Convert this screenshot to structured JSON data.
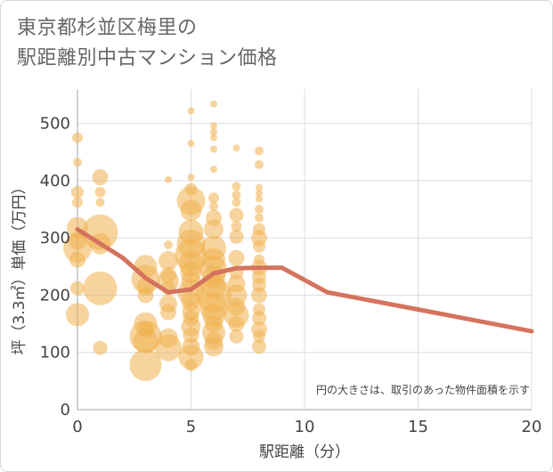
{
  "title": {
    "line1": "東京都杉並区梅里の",
    "line2": "駅距離別中古マンション価格"
  },
  "chart_data": {
    "type": "scatter",
    "xlabel": "駅距離（分）",
    "ylabel": "坪（3.3㎡）単価（万円）",
    "xlim": [
      0,
      20
    ],
    "ylim": [
      0,
      560
    ],
    "xticks": [
      0,
      5,
      10,
      15,
      20
    ],
    "yticks": [
      0,
      100,
      200,
      300,
      400,
      500
    ],
    "grid": true,
    "note": "円の大きさは、取引のあった物件面積を示す",
    "colors": {
      "bubble": "#f0b04f",
      "line": "#d4735e",
      "grid": "#d7dde3"
    },
    "trend_line": {
      "x": [
        0,
        1,
        2,
        3,
        4,
        5,
        6,
        7,
        8,
        9,
        11,
        15,
        20
      ],
      "y": [
        315,
        290,
        265,
        230,
        205,
        210,
        238,
        247,
        248,
        248,
        205,
        175,
        137
      ]
    },
    "bubbles": [
      {
        "x": 0,
        "y": 475,
        "r": 6
      },
      {
        "x": 0,
        "y": 432,
        "r": 5
      },
      {
        "x": 0,
        "y": 380,
        "r": 7
      },
      {
        "x": 0,
        "y": 362,
        "r": 6
      },
      {
        "x": 0,
        "y": 318,
        "r": 12
      },
      {
        "x": 0,
        "y": 295,
        "r": 10
      },
      {
        "x": 0,
        "y": 282,
        "r": 16
      },
      {
        "x": 0,
        "y": 262,
        "r": 9
      },
      {
        "x": 0,
        "y": 212,
        "r": 8
      },
      {
        "x": 0,
        "y": 166,
        "r": 13
      },
      {
        "x": 1,
        "y": 406,
        "r": 9
      },
      {
        "x": 1,
        "y": 380,
        "r": 6
      },
      {
        "x": 1,
        "y": 362,
        "r": 5
      },
      {
        "x": 1,
        "y": 310,
        "r": 20
      },
      {
        "x": 1,
        "y": 290,
        "r": 12
      },
      {
        "x": 1,
        "y": 212,
        "r": 19
      },
      {
        "x": 1,
        "y": 108,
        "r": 8
      },
      {
        "x": 3,
        "y": 250,
        "r": 13
      },
      {
        "x": 3,
        "y": 228,
        "r": 16
      },
      {
        "x": 3,
        "y": 215,
        "r": 10
      },
      {
        "x": 3,
        "y": 200,
        "r": 9
      },
      {
        "x": 3,
        "y": 150,
        "r": 13
      },
      {
        "x": 3,
        "y": 140,
        "r": 9
      },
      {
        "x": 3,
        "y": 128,
        "r": 18
      },
      {
        "x": 3,
        "y": 120,
        "r": 14
      },
      {
        "x": 3,
        "y": 78,
        "r": 18
      },
      {
        "x": 4,
        "y": 402,
        "r": 4
      },
      {
        "x": 4,
        "y": 288,
        "r": 5
      },
      {
        "x": 4,
        "y": 260,
        "r": 11
      },
      {
        "x": 4,
        "y": 235,
        "r": 9
      },
      {
        "x": 4,
        "y": 225,
        "r": 12
      },
      {
        "x": 4,
        "y": 212,
        "r": 8
      },
      {
        "x": 4,
        "y": 185,
        "r": 10
      },
      {
        "x": 4,
        "y": 170,
        "r": 9
      },
      {
        "x": 4,
        "y": 125,
        "r": 11
      },
      {
        "x": 4,
        "y": 108,
        "r": 15
      },
      {
        "x": 5,
        "y": 522,
        "r": 4
      },
      {
        "x": 5,
        "y": 465,
        "r": 4
      },
      {
        "x": 5,
        "y": 406,
        "r": 4
      },
      {
        "x": 5,
        "y": 385,
        "r": 7
      },
      {
        "x": 5,
        "y": 365,
        "r": 16
      },
      {
        "x": 5,
        "y": 348,
        "r": 12
      },
      {
        "x": 5,
        "y": 310,
        "r": 14
      },
      {
        "x": 5,
        "y": 290,
        "r": 16
      },
      {
        "x": 5,
        "y": 270,
        "r": 18
      },
      {
        "x": 5,
        "y": 255,
        "r": 14
      },
      {
        "x": 5,
        "y": 240,
        "r": 12
      },
      {
        "x": 5,
        "y": 225,
        "r": 11
      },
      {
        "x": 5,
        "y": 205,
        "r": 15
      },
      {
        "x": 5,
        "y": 190,
        "r": 11
      },
      {
        "x": 5,
        "y": 172,
        "r": 10
      },
      {
        "x": 5,
        "y": 160,
        "r": 9
      },
      {
        "x": 5,
        "y": 145,
        "r": 11
      },
      {
        "x": 5,
        "y": 130,
        "r": 9
      },
      {
        "x": 5,
        "y": 110,
        "r": 10
      },
      {
        "x": 5,
        "y": 92,
        "r": 14
      },
      {
        "x": 5,
        "y": 78,
        "r": 7
      },
      {
        "x": 6,
        "y": 534,
        "r": 4
      },
      {
        "x": 6,
        "y": 496,
        "r": 4
      },
      {
        "x": 6,
        "y": 485,
        "r": 4
      },
      {
        "x": 6,
        "y": 475,
        "r": 4
      },
      {
        "x": 6,
        "y": 455,
        "r": 4
      },
      {
        "x": 6,
        "y": 420,
        "r": 4
      },
      {
        "x": 6,
        "y": 370,
        "r": 6
      },
      {
        "x": 6,
        "y": 355,
        "r": 5
      },
      {
        "x": 6,
        "y": 335,
        "r": 9
      },
      {
        "x": 6,
        "y": 315,
        "r": 11
      },
      {
        "x": 6,
        "y": 282,
        "r": 14
      },
      {
        "x": 6,
        "y": 262,
        "r": 13
      },
      {
        "x": 6,
        "y": 245,
        "r": 15
      },
      {
        "x": 6,
        "y": 232,
        "r": 13
      },
      {
        "x": 6,
        "y": 215,
        "r": 14
      },
      {
        "x": 6,
        "y": 200,
        "r": 20
      },
      {
        "x": 6,
        "y": 180,
        "r": 16
      },
      {
        "x": 6,
        "y": 165,
        "r": 13
      },
      {
        "x": 6,
        "y": 150,
        "r": 10
      },
      {
        "x": 6,
        "y": 135,
        "r": 13
      },
      {
        "x": 6,
        "y": 120,
        "r": 10
      },
      {
        "x": 6,
        "y": 110,
        "r": 11
      },
      {
        "x": 7,
        "y": 457,
        "r": 4
      },
      {
        "x": 7,
        "y": 390,
        "r": 5
      },
      {
        "x": 7,
        "y": 375,
        "r": 5
      },
      {
        "x": 7,
        "y": 362,
        "r": 5
      },
      {
        "x": 7,
        "y": 340,
        "r": 8
      },
      {
        "x": 7,
        "y": 320,
        "r": 6
      },
      {
        "x": 7,
        "y": 302,
        "r": 8
      },
      {
        "x": 7,
        "y": 265,
        "r": 9
      },
      {
        "x": 7,
        "y": 240,
        "r": 8
      },
      {
        "x": 7,
        "y": 220,
        "r": 10
      },
      {
        "x": 7,
        "y": 200,
        "r": 12
      },
      {
        "x": 7,
        "y": 180,
        "r": 10
      },
      {
        "x": 7,
        "y": 165,
        "r": 14
      },
      {
        "x": 7,
        "y": 150,
        "r": 9
      },
      {
        "x": 7,
        "y": 128,
        "r": 8
      },
      {
        "x": 8,
        "y": 452,
        "r": 5
      },
      {
        "x": 8,
        "y": 428,
        "r": 5
      },
      {
        "x": 8,
        "y": 388,
        "r": 4
      },
      {
        "x": 8,
        "y": 378,
        "r": 4
      },
      {
        "x": 8,
        "y": 368,
        "r": 4
      },
      {
        "x": 8,
        "y": 350,
        "r": 5
      },
      {
        "x": 8,
        "y": 335,
        "r": 5
      },
      {
        "x": 8,
        "y": 315,
        "r": 7
      },
      {
        "x": 8,
        "y": 300,
        "r": 9
      },
      {
        "x": 8,
        "y": 285,
        "r": 7
      },
      {
        "x": 8,
        "y": 262,
        "r": 6
      },
      {
        "x": 8,
        "y": 248,
        "r": 9
      },
      {
        "x": 8,
        "y": 232,
        "r": 8
      },
      {
        "x": 8,
        "y": 218,
        "r": 8
      },
      {
        "x": 8,
        "y": 200,
        "r": 9
      },
      {
        "x": 8,
        "y": 175,
        "r": 7
      },
      {
        "x": 8,
        "y": 160,
        "r": 8
      },
      {
        "x": 8,
        "y": 140,
        "r": 9
      },
      {
        "x": 8,
        "y": 128,
        "r": 7
      },
      {
        "x": 8,
        "y": 110,
        "r": 8
      }
    ]
  }
}
